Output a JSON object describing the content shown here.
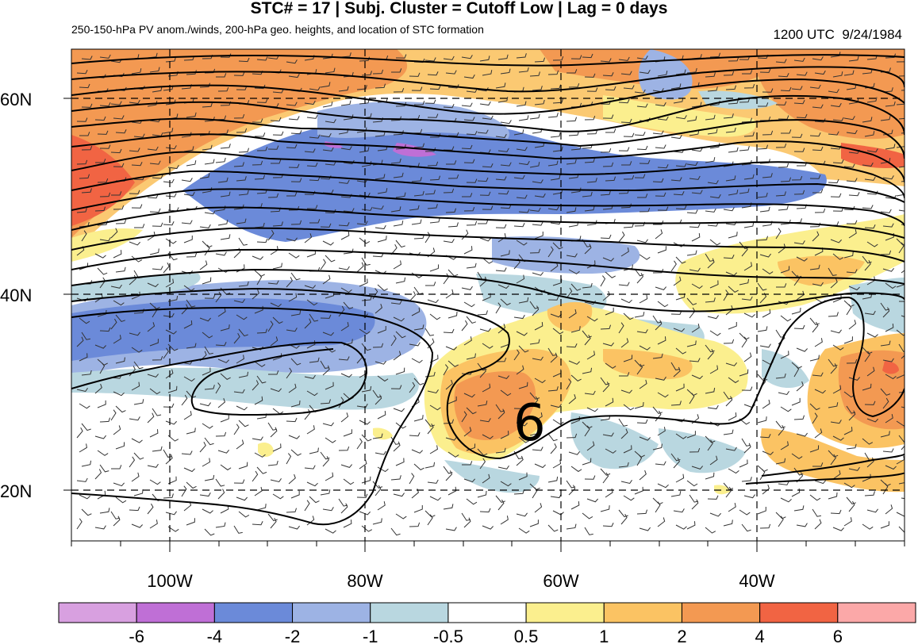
{
  "title": "STC# = 17 | Subj. Cluster = Cutoff Low | Lag = 0 days",
  "subtitle": "250-150-hPa PV anom./winds, 200-hPa geo. heights, and location of STC formation",
  "timestamp": "1200 UTC  9/24/1984",
  "lat_labels": [
    "60N",
    "40N",
    "20N"
  ],
  "lon_labels": [
    "100W",
    "80W",
    "60W",
    "40W"
  ],
  "storm_marker": "6",
  "colorbar": {
    "colors": [
      "#d8a0e0",
      "#bf6fd6",
      "#6b8ad9",
      "#9db3e4",
      "#b9d7e0",
      "#ffffff",
      "#fbef8e",
      "#fbc363",
      "#f39952",
      "#f16443",
      "#fba8a8"
    ],
    "labels": [
      "-6",
      "-4",
      "-2",
      "-1",
      "-0.5",
      "0.5",
      "1",
      "2",
      "4",
      "6"
    ]
  }
}
